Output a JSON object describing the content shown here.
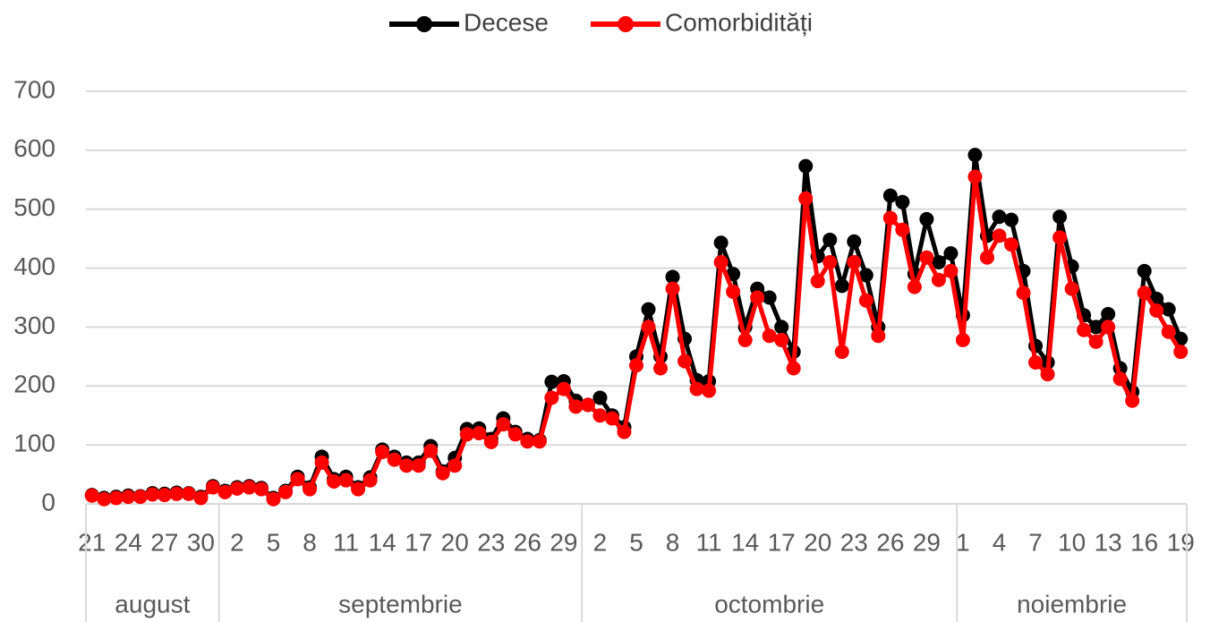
{
  "chart_data": {
    "type": "line",
    "categories": [
      "21",
      null,
      null,
      "24",
      null,
      null,
      "27",
      null,
      null,
      "30",
      null,
      null,
      "2",
      null,
      null,
      "5",
      null,
      null,
      "8",
      null,
      null,
      "11",
      null,
      null,
      "14",
      null,
      null,
      "17",
      null,
      null,
      "20",
      null,
      null,
      "23",
      null,
      null,
      "26",
      null,
      null,
      "29",
      null,
      null,
      "2",
      null,
      null,
      "5",
      null,
      null,
      "8",
      null,
      null,
      "11",
      null,
      null,
      "14",
      null,
      null,
      "17",
      null,
      null,
      "20",
      null,
      null,
      "23",
      null,
      null,
      "26",
      null,
      null,
      "29",
      null,
      null,
      "1",
      null,
      null,
      "4",
      null,
      null,
      "7",
      null,
      null,
      "10",
      null,
      null,
      "13",
      null,
      null,
      "16",
      null,
      null,
      "19"
    ],
    "groups": [
      "august",
      "septembrie",
      "octombrie",
      "noiembrie"
    ],
    "series": [
      {
        "name": "Decese",
        "color": "#000000",
        "values": [
          15,
          10,
          12,
          14,
          13,
          18,
          17,
          19,
          18,
          12,
          30,
          22,
          28,
          30,
          27,
          10,
          22,
          46,
          28,
          80,
          42,
          46,
          28,
          45,
          92,
          80,
          70,
          70,
          98,
          55,
          78,
          127,
          128,
          110,
          145,
          122,
          110,
          108,
          207,
          208,
          175,
          168,
          180,
          150,
          130,
          250,
          330,
          250,
          385,
          280,
          210,
          208,
          443,
          390,
          300,
          365,
          350,
          300,
          258,
          573,
          420,
          448,
          370,
          445,
          388,
          300,
          523,
          512,
          390,
          483,
          410,
          425,
          320,
          592,
          455,
          487,
          482,
          395,
          268,
          240,
          487,
          403,
          320,
          300,
          322,
          230,
          190,
          395,
          348,
          330,
          280
        ]
      },
      {
        "name": "Comorbidități",
        "color": "#ff0000",
        "values": [
          14,
          8,
          10,
          12,
          12,
          16,
          15,
          17,
          17,
          10,
          28,
          20,
          26,
          28,
          25,
          8,
          20,
          42,
          25,
          70,
          38,
          40,
          25,
          40,
          88,
          75,
          65,
          65,
          90,
          52,
          65,
          118,
          120,
          105,
          135,
          118,
          106,
          106,
          180,
          195,
          165,
          168,
          150,
          145,
          122,
          235,
          300,
          230,
          365,
          242,
          195,
          192,
          410,
          360,
          278,
          350,
          285,
          278,
          230,
          518,
          378,
          410,
          258,
          410,
          345,
          285,
          485,
          465,
          368,
          418,
          380,
          395,
          278,
          555,
          418,
          455,
          440,
          358,
          240,
          220,
          452,
          365,
          295,
          275,
          300,
          212,
          175,
          358,
          328,
          292,
          258
        ]
      }
    ],
    "ylim": [
      0,
      700
    ],
    "yticks": [
      0,
      100,
      200,
      300,
      400,
      500,
      600,
      700
    ],
    "grid": true,
    "legend": "top"
  }
}
